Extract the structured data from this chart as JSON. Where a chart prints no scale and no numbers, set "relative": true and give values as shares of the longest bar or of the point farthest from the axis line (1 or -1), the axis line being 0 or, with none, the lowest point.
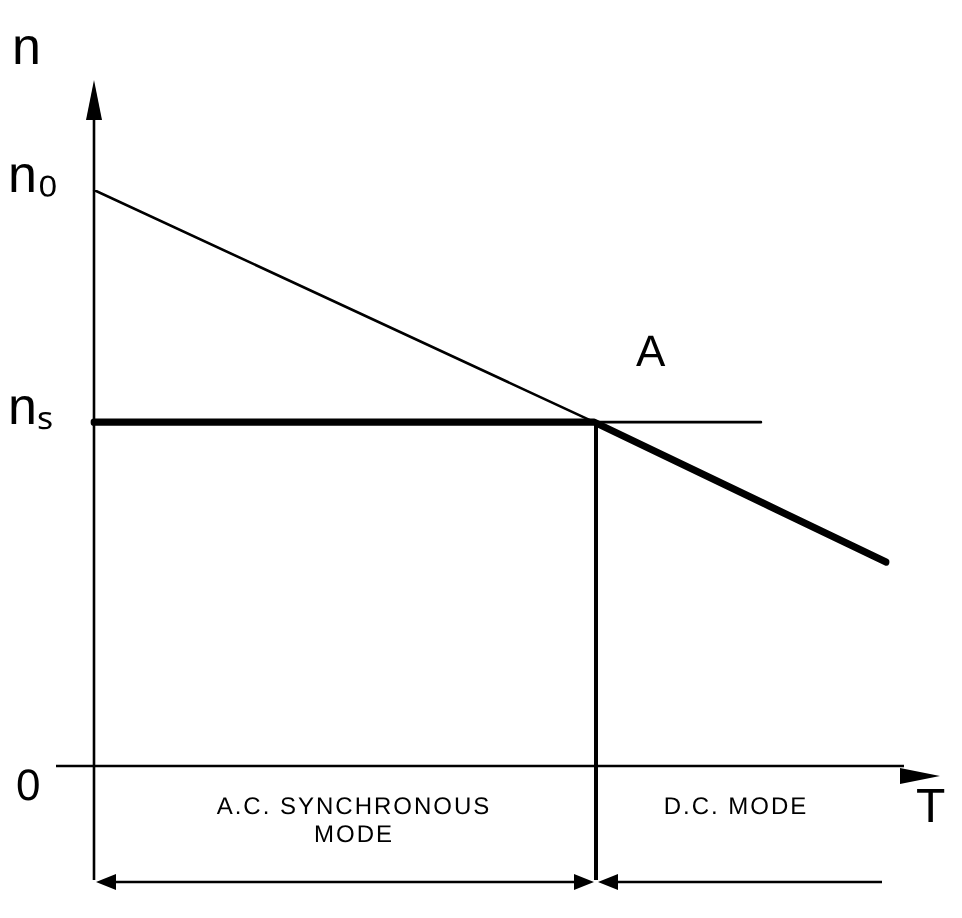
{
  "chart_data": {
    "type": "line",
    "relative": true,
    "xlabel": "T",
    "ylabel": "n",
    "categories": [
      null,
      null,
      null,
      null,
      null,
      null,
      null,
      null,
      null,
      null,
      null,
      null,
      null,
      null,
      null,
      null,
      null,
      null,
      null,
      null
    ],
    "series": [
      {
        "color": "#000000",
        "values": [
          1,
          null,
          null,
          null,
          null,
          null,
          null,
          null,
          null,
          null,
          null,
          null,
          0.597,
          null,
          null,
          null,
          0.597,
          null,
          null,
          null
        ]
      },
      {
        "color": "#000000",
        "values": [
          0.597,
          null,
          null,
          null,
          null,
          null,
          null,
          null,
          null,
          null,
          null,
          null,
          0.597,
          null,
          null,
          null,
          null,
          null,
          null,
          0.354
        ]
      }
    ],
    "annotations": [
      "n₀",
      "nₛ",
      "0",
      "A",
      "A.C. SYNCHRONOUS MODE",
      "D.C. MODE"
    ],
    "legend": false,
    "marker": "none",
    "line_style": "solid"
  }
}
